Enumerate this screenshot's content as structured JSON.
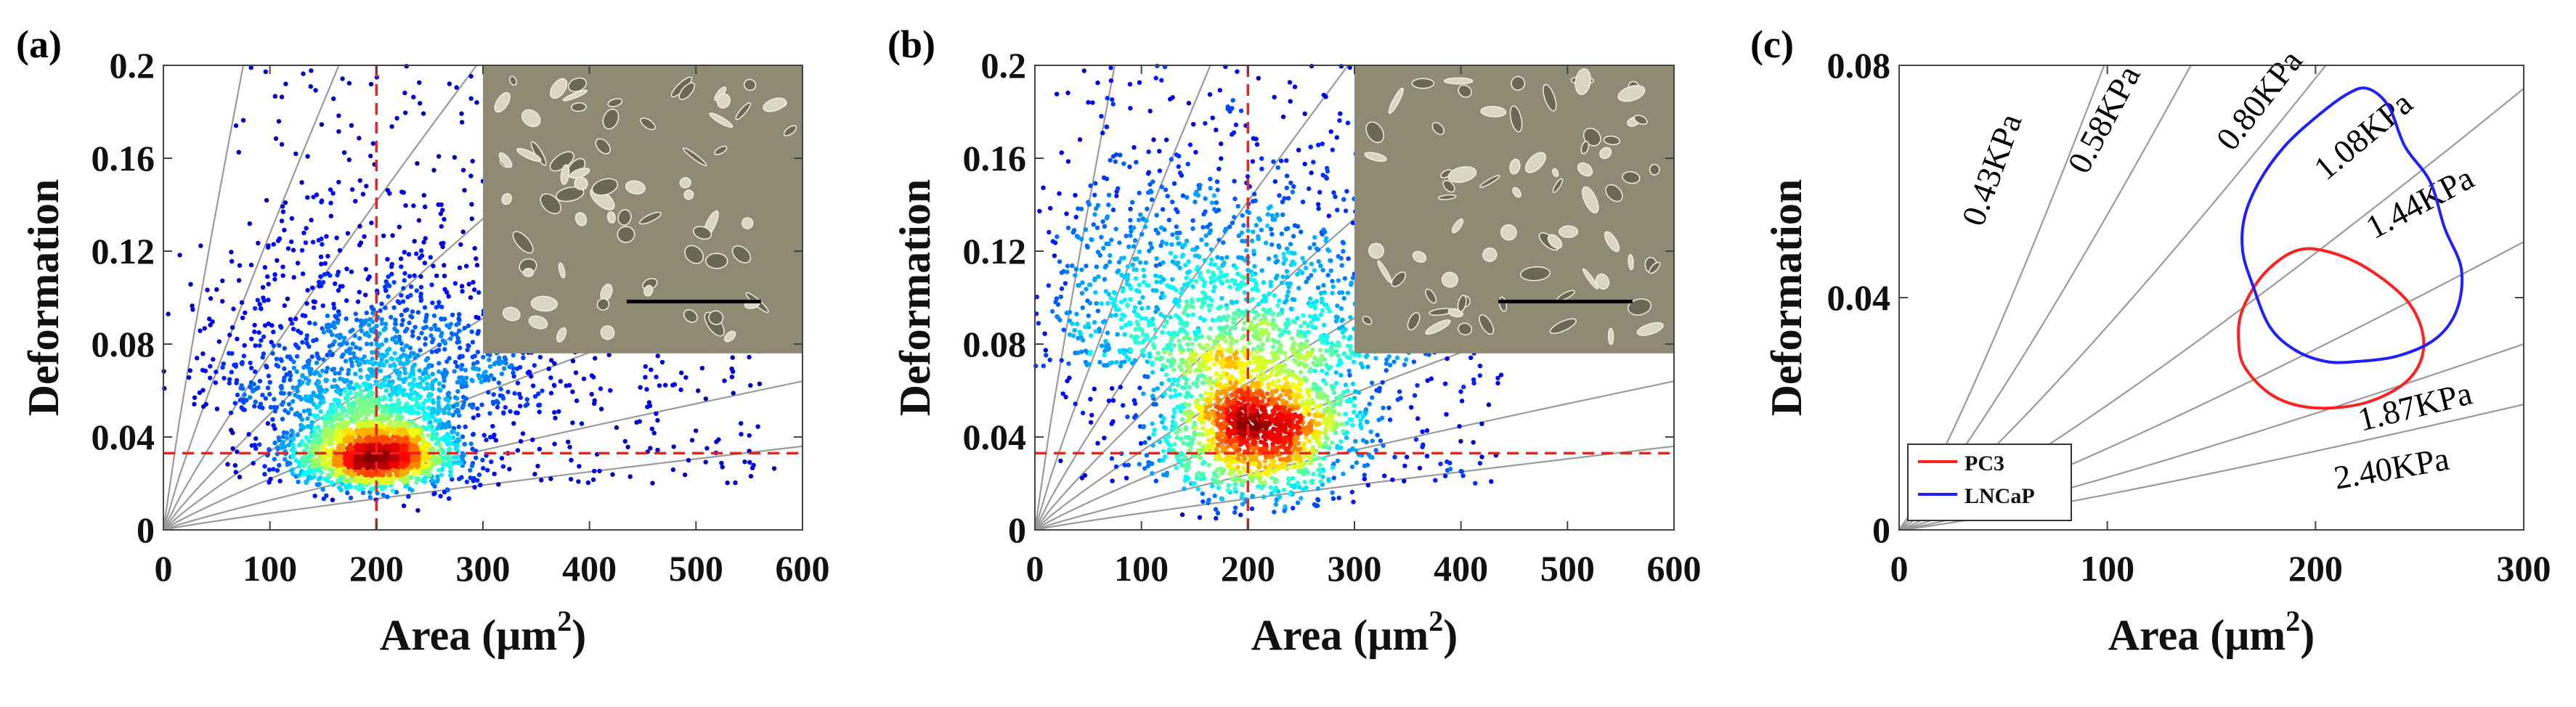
{
  "chart_data": [
    {
      "panel_label": "(a)",
      "type": "scatter",
      "xlabel_base": "Area (μm",
      "xlabel_sup": "2",
      "xlabel_close": ")",
      "ylabel": "Deformation",
      "xlim": [
        0,
        600
      ],
      "ylim": [
        0,
        0.2
      ],
      "xticks": [
        "0",
        "100",
        "200",
        "300",
        "400",
        "500",
        "600"
      ],
      "yticks": [
        "0",
        "0.04",
        "0.08",
        "0.12",
        "0.16",
        "0.2"
      ],
      "reference_lines": {
        "x": 200,
        "y": 0.033
      },
      "density_center": {
        "x": 200,
        "y": 0.033
      },
      "point_count_approx": 5000,
      "inset": "micrograph with scale bar (top-right)",
      "colormap": "jet (blue = low density, red = high density)"
    },
    {
      "panel_label": "(b)",
      "type": "scatter",
      "xlabel_base": "Area (μm",
      "xlabel_sup": "2",
      "xlabel_close": ")",
      "ylabel": "Deformation",
      "xlim": [
        0,
        600
      ],
      "ylim": [
        0,
        0.2
      ],
      "xticks": [
        "0",
        "100",
        "200",
        "300",
        "400",
        "500",
        "600"
      ],
      "yticks": [
        "0",
        "0.04",
        "0.08",
        "0.12",
        "0.16",
        "0.2"
      ],
      "reference_lines": {
        "x": 200,
        "y": 0.033
      },
      "density_center": {
        "x": 210,
        "y": 0.045
      },
      "point_count_approx": 4500,
      "inset": "micrograph with scale bar (top-right)",
      "colormap": "jet (blue = low density, red = high density)"
    },
    {
      "panel_label": "(c)",
      "type": "line",
      "xlabel_base": "Area (μm",
      "xlabel_sup": "2",
      "xlabel_close": ")",
      "ylabel": "Deformation",
      "xlim": [
        0,
        300
      ],
      "ylim": [
        0,
        0.08
      ],
      "xticks": [
        "0",
        "100",
        "200",
        "300"
      ],
      "yticks": [
        "0",
        "0.04",
        "0.08"
      ],
      "stiffness_curves": [
        "0.43KPa",
        "0.58KPa",
        "0.80KPa",
        "1.08KPa",
        "1.44KPa",
        "1.87KPa",
        "2.40KPa"
      ],
      "series": [
        {
          "name": "PC3",
          "color": "#ff2020",
          "type": "contour",
          "points": [
            [
              165,
              0.038
            ],
            [
              175,
              0.044
            ],
            [
              190,
              0.048
            ],
            [
              205,
              0.048
            ],
            [
              225,
              0.045
            ],
            [
              245,
              0.039
            ],
            [
              252,
              0.032
            ],
            [
              245,
              0.026
            ],
            [
              225,
              0.022
            ],
            [
              200,
              0.021
            ],
            [
              180,
              0.023
            ],
            [
              166,
              0.028
            ],
            [
              163,
              0.033
            ]
          ]
        },
        {
          "name": "LNCaP",
          "color": "#2020ff",
          "type": "contour",
          "points": [
            [
              173,
              0.06
            ],
            [
              185,
              0.066
            ],
            [
              200,
              0.071
            ],
            [
              215,
              0.075
            ],
            [
              225,
              0.076
            ],
            [
              235,
              0.073
            ],
            [
              243,
              0.066
            ],
            [
              255,
              0.06
            ],
            [
              262,
              0.052
            ],
            [
              270,
              0.045
            ],
            [
              268,
              0.038
            ],
            [
              258,
              0.033
            ],
            [
              240,
              0.03
            ],
            [
              220,
              0.029
            ],
            [
              205,
              0.029
            ],
            [
              190,
              0.031
            ],
            [
              178,
              0.035
            ],
            [
              170,
              0.042
            ],
            [
              165,
              0.048
            ],
            [
              166,
              0.054
            ]
          ]
        }
      ],
      "legend_position": "bottom-left"
    }
  ]
}
